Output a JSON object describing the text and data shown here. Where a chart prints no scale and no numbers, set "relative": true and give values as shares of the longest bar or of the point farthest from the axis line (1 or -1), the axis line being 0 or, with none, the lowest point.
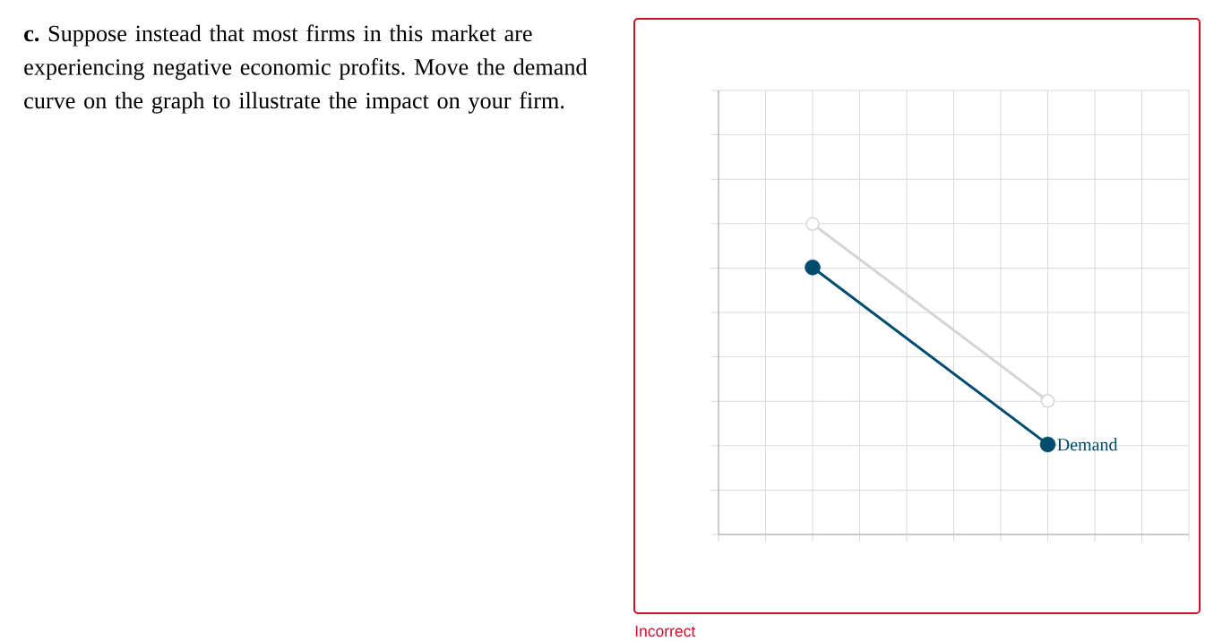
{
  "chart_data": {
    "type": "line",
    "title": "**c.** Suppose instead that most firms in this market are experiencing negative economic profits. Move the demand curve on the graph to illustrate the impact on your firm.",
    "categories": [
      null,
      null,
      null,
      null,
      null,
      null,
      null,
      null,
      null,
      null,
      null
    ],
    "series": [
      {
        "color": "#d4d4d4",
        "values": [
          null,
          null,
          1,
          null,
          null,
          null,
          null,
          0.43,
          null,
          null,
          null
        ]
      },
      {
        "name": "Demand",
        "color": "#004c6d",
        "values": [
          null,
          null,
          0.86,
          null,
          null,
          null,
          null,
          0.29,
          null,
          null,
          null
        ]
      }
    ],
    "relative": true,
    "grid": true,
    "marker": "circle",
    "annotations": [
      "Incorrect"
    ]
  }
}
